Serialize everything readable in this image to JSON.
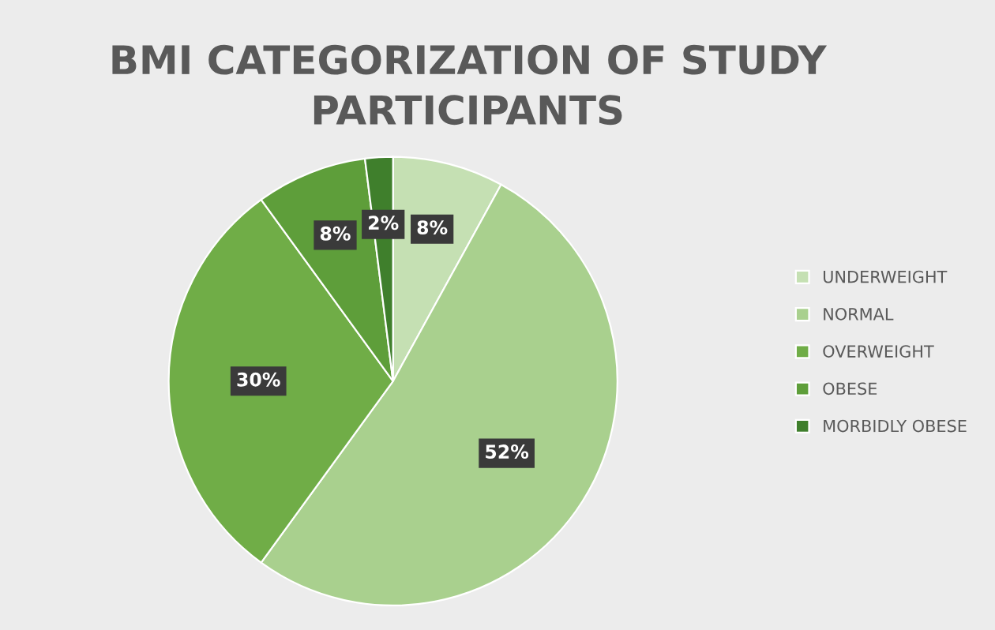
{
  "chart_data": {
    "type": "pie",
    "title": "BMI CATEGORIZATION OF STUDY PARTICIPANTS",
    "categories": [
      "UNDERWEIGHT",
      "NORMAL",
      "OVERWEIGHT",
      "OBESE",
      "MORBIDLY OBESE"
    ],
    "values": [
      8,
      52,
      30,
      8,
      2
    ],
    "colors": [
      "#c5e0b3",
      "#a9d08e",
      "#70ad47",
      "#5e9e3a",
      "#3f7f2c"
    ],
    "value_labels": [
      "8%",
      "52%",
      "30%",
      "8%",
      "2%"
    ],
    "legend": "right"
  }
}
